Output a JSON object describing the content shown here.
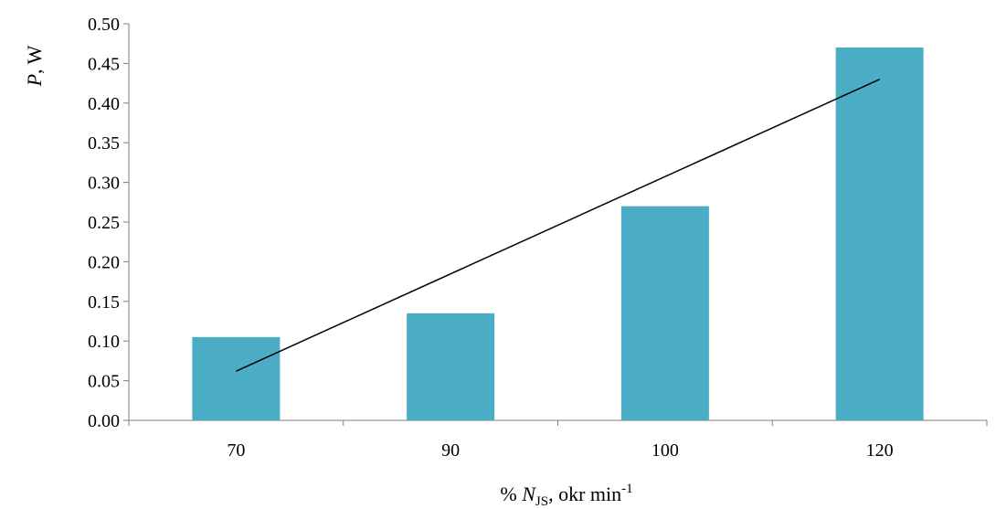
{
  "chart_data": {
    "type": "bar",
    "categories": [
      "70",
      "90",
      "100",
      "120"
    ],
    "values": [
      0.105,
      0.135,
      0.27,
      0.47
    ],
    "trendline": {
      "type": "linear",
      "start": 0.062,
      "end": 0.43
    },
    "ylim": [
      0,
      0.5
    ],
    "yticks": [
      "0.00",
      "0.05",
      "0.10",
      "0.15",
      "0.20",
      "0.25",
      "0.30",
      "0.35",
      "0.40",
      "0.45",
      "0.50"
    ],
    "ylabel": {
      "var": "P",
      "rest": ", W"
    },
    "xlabel": {
      "prefix": "% ",
      "var": "N",
      "sub": "JS",
      "rest": ", okr min",
      "sup": "-1"
    },
    "grid": false,
    "legend": "none"
  },
  "colors": {
    "bar": "#4BACC6",
    "trendline": "#000000",
    "axis": "#7f7f7f"
  }
}
